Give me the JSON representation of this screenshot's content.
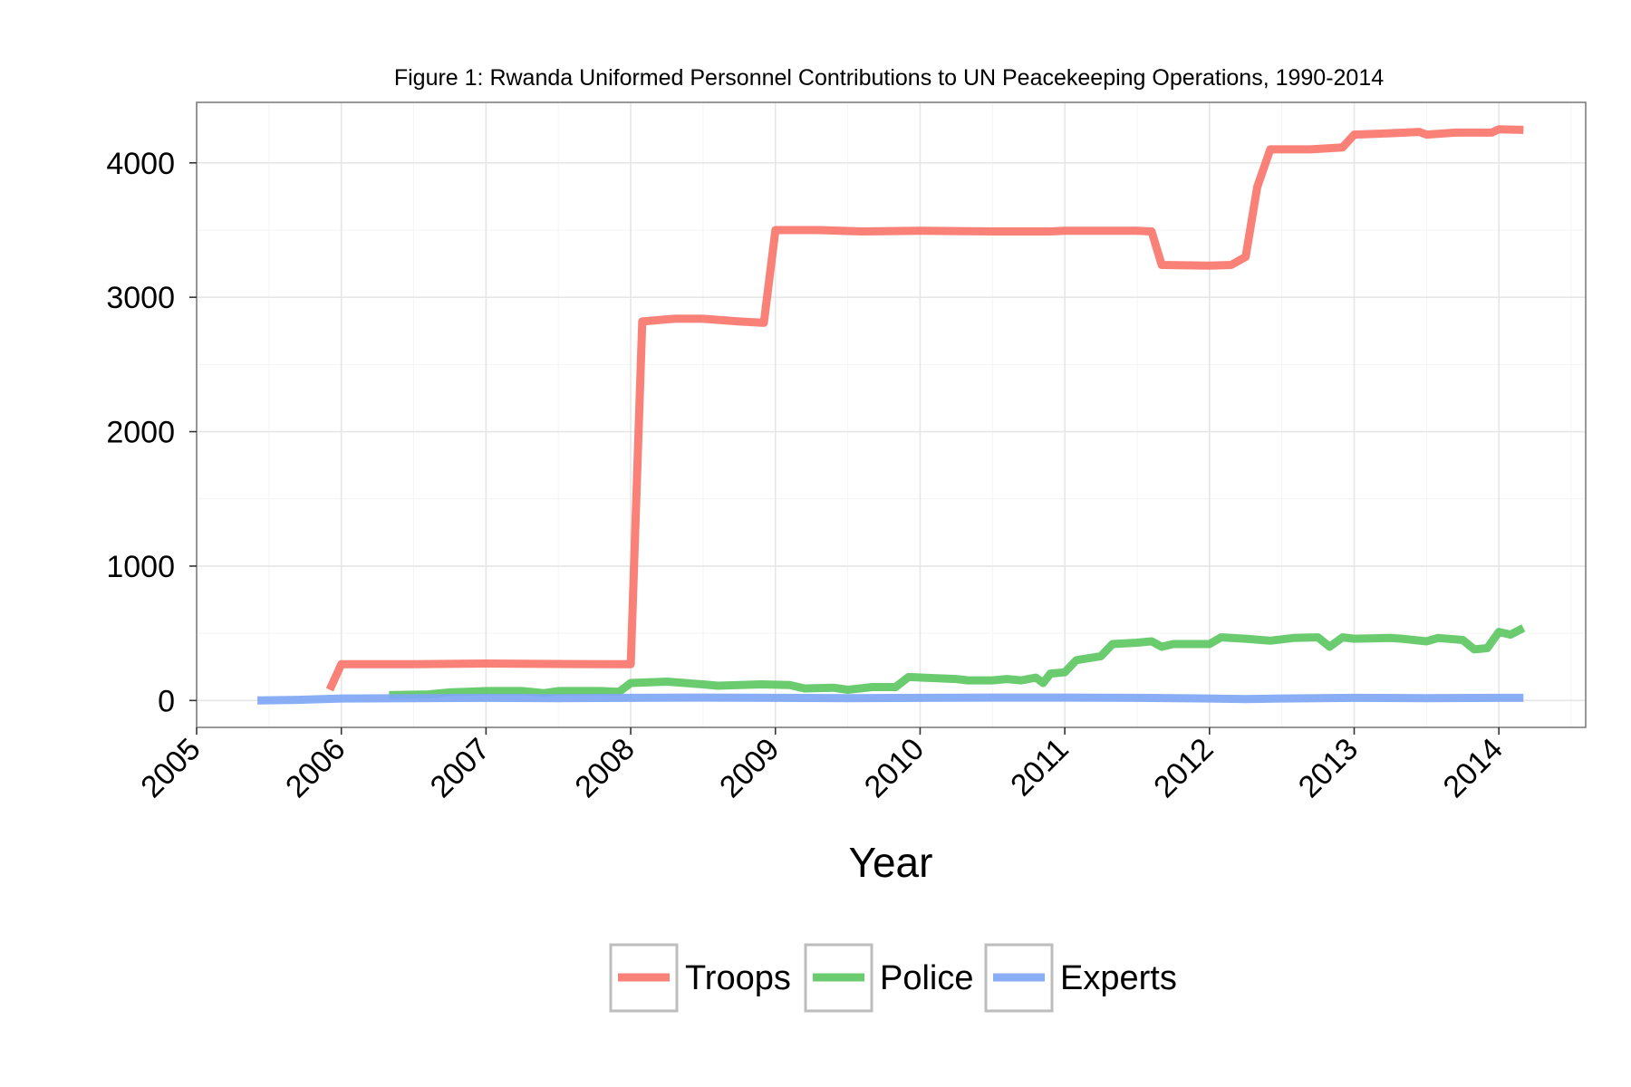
{
  "chart_data": {
    "type": "line",
    "title": "Figure 1: Rwanda Uniformed Personnel Contributions to UN Peacekeeping Operations, 1990-2014",
    "xlabel": "Year",
    "ylabel": "",
    "xlim": [
      2005,
      2014.6
    ],
    "ylim": [
      -200,
      4450
    ],
    "x_ticks": [
      2005,
      2006,
      2007,
      2008,
      2009,
      2010,
      2011,
      2012,
      2013,
      2014
    ],
    "y_ticks": [
      0,
      1000,
      2000,
      3000,
      4000
    ],
    "x_tick_labels": [
      "2005",
      "2006",
      "2007",
      "2008",
      "2009",
      "2010",
      "2011",
      "2012",
      "2013",
      "2014"
    ],
    "y_tick_labels": [
      "0",
      "1000",
      "2000",
      "3000",
      "4000"
    ],
    "grid": true,
    "legend_position": "bottom",
    "series": [
      {
        "name": "Troops",
        "color": "#F8766D",
        "points": [
          [
            2005.92,
            80
          ],
          [
            2006.0,
            270
          ],
          [
            2006.5,
            270
          ],
          [
            2007.0,
            275
          ],
          [
            2007.5,
            272
          ],
          [
            2007.92,
            270
          ],
          [
            2008.0,
            270
          ],
          [
            2008.08,
            2820
          ],
          [
            2008.3,
            2840
          ],
          [
            2008.5,
            2840
          ],
          [
            2008.75,
            2820
          ],
          [
            2008.92,
            2810
          ],
          [
            2009.0,
            3500
          ],
          [
            2009.3,
            3500
          ],
          [
            2009.6,
            3490
          ],
          [
            2010.0,
            3495
          ],
          [
            2010.5,
            3490
          ],
          [
            2010.9,
            3490
          ],
          [
            2011.0,
            3495
          ],
          [
            2011.5,
            3495
          ],
          [
            2011.6,
            3490
          ],
          [
            2011.67,
            3240
          ],
          [
            2012.0,
            3235
          ],
          [
            2012.15,
            3240
          ],
          [
            2012.25,
            3300
          ],
          [
            2012.33,
            3820
          ],
          [
            2012.42,
            4100
          ],
          [
            2012.7,
            4100
          ],
          [
            2012.92,
            4115
          ],
          [
            2013.0,
            4210
          ],
          [
            2013.25,
            4220
          ],
          [
            2013.45,
            4230
          ],
          [
            2013.5,
            4210
          ],
          [
            2013.7,
            4225
          ],
          [
            2013.95,
            4225
          ],
          [
            2014.0,
            4250
          ],
          [
            2014.17,
            4245
          ]
        ]
      },
      {
        "name": "Police",
        "color": "#5DC863",
        "points": [
          [
            2006.33,
            40
          ],
          [
            2006.6,
            45
          ],
          [
            2006.75,
            60
          ],
          [
            2007.0,
            70
          ],
          [
            2007.25,
            70
          ],
          [
            2007.4,
            55
          ],
          [
            2007.5,
            70
          ],
          [
            2007.8,
            70
          ],
          [
            2007.92,
            65
          ],
          [
            2008.0,
            130
          ],
          [
            2008.25,
            140
          ],
          [
            2008.5,
            120
          ],
          [
            2008.6,
            110
          ],
          [
            2008.9,
            120
          ],
          [
            2009.1,
            115
          ],
          [
            2009.2,
            90
          ],
          [
            2009.4,
            95
          ],
          [
            2009.5,
            80
          ],
          [
            2009.67,
            100
          ],
          [
            2009.83,
            100
          ],
          [
            2009.92,
            175
          ],
          [
            2010.25,
            160
          ],
          [
            2010.33,
            150
          ],
          [
            2010.5,
            150
          ],
          [
            2010.6,
            160
          ],
          [
            2010.7,
            150
          ],
          [
            2010.8,
            170
          ],
          [
            2010.85,
            130
          ],
          [
            2010.9,
            200
          ],
          [
            2011.0,
            210
          ],
          [
            2011.08,
            300
          ],
          [
            2011.25,
            330
          ],
          [
            2011.33,
            420
          ],
          [
            2011.5,
            430
          ],
          [
            2011.6,
            440
          ],
          [
            2011.67,
            400
          ],
          [
            2011.75,
            420
          ],
          [
            2012.0,
            420
          ],
          [
            2012.08,
            470
          ],
          [
            2012.25,
            460
          ],
          [
            2012.42,
            445
          ],
          [
            2012.58,
            465
          ],
          [
            2012.75,
            470
          ],
          [
            2012.83,
            400
          ],
          [
            2012.92,
            470
          ],
          [
            2013.0,
            460
          ],
          [
            2013.25,
            465
          ],
          [
            2013.33,
            460
          ],
          [
            2013.5,
            440
          ],
          [
            2013.58,
            465
          ],
          [
            2013.75,
            450
          ],
          [
            2013.83,
            380
          ],
          [
            2013.92,
            390
          ],
          [
            2014.0,
            510
          ],
          [
            2014.08,
            490
          ],
          [
            2014.17,
            540
          ]
        ]
      },
      {
        "name": "Experts",
        "color": "#7FA7F5",
        "points": [
          [
            2005.42,
            0
          ],
          [
            2005.7,
            5
          ],
          [
            2006.0,
            15
          ],
          [
            2006.5,
            18
          ],
          [
            2007.0,
            20
          ],
          [
            2007.5,
            18
          ],
          [
            2008.0,
            20
          ],
          [
            2008.5,
            22
          ],
          [
            2009.0,
            20
          ],
          [
            2009.5,
            18
          ],
          [
            2010.0,
            20
          ],
          [
            2010.5,
            22
          ],
          [
            2011.0,
            22
          ],
          [
            2011.5,
            20
          ],
          [
            2012.0,
            15
          ],
          [
            2012.25,
            10
          ],
          [
            2012.5,
            15
          ],
          [
            2013.0,
            20
          ],
          [
            2013.5,
            18
          ],
          [
            2014.0,
            20
          ],
          [
            2014.17,
            20
          ]
        ]
      }
    ]
  }
}
